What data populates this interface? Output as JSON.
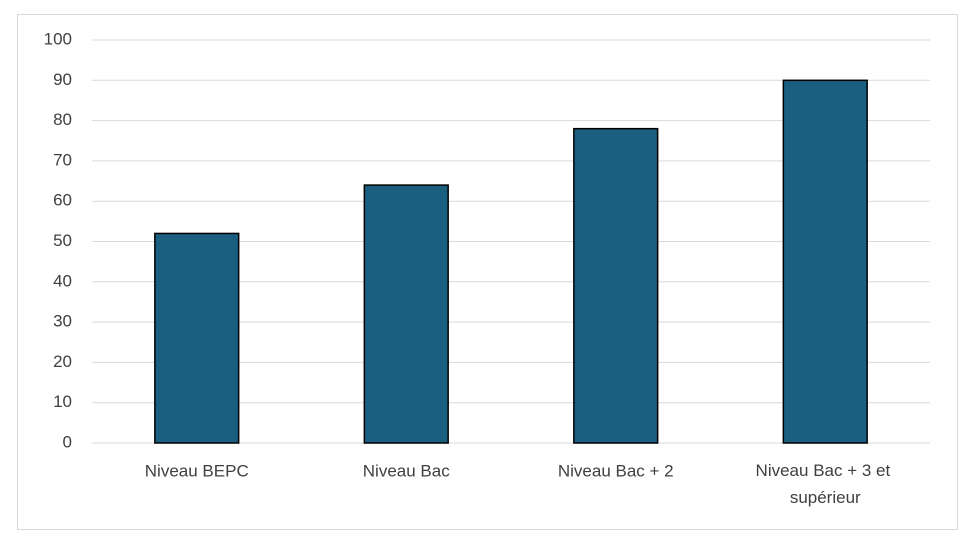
{
  "chart_data": {
    "type": "bar",
    "categories": [
      "Niveau BEPC",
      "Niveau Bac",
      "Niveau Bac + 2",
      "Niveau Bac + 3 et supérieur"
    ],
    "values": [
      52,
      64,
      78,
      90
    ],
    "color": "#1a5f7f",
    "ylim": [
      0,
      100
    ],
    "yticks": [
      0,
      10,
      20,
      30,
      40,
      50,
      60,
      70,
      80,
      90,
      100
    ],
    "grid": true
  }
}
